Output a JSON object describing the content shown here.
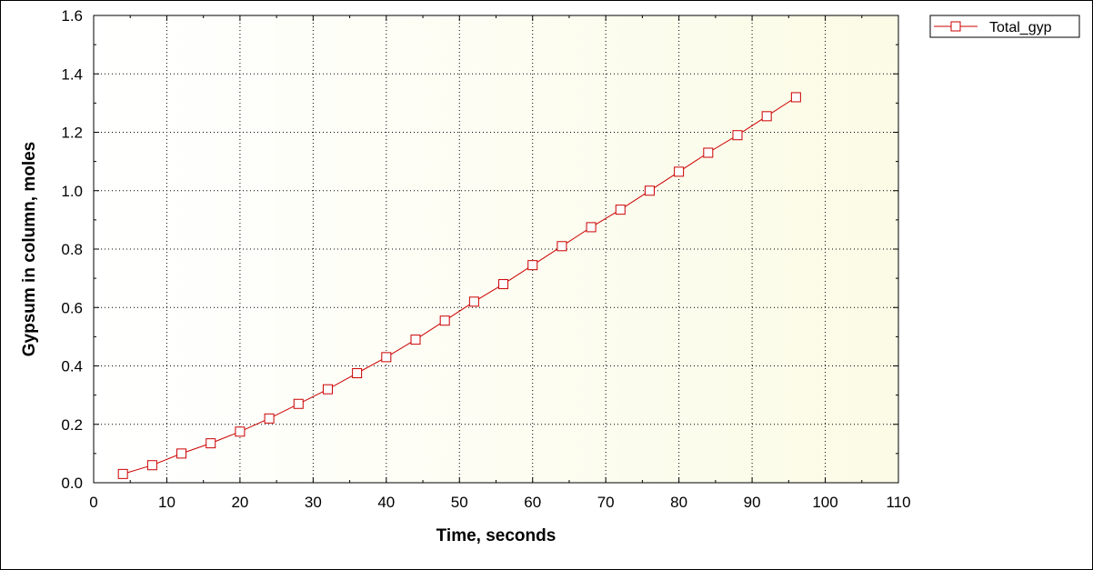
{
  "chart_data": {
    "type": "line",
    "title": "",
    "xlabel": "Time, seconds",
    "ylabel": "Gypsum in column, moles",
    "xlim": [
      0,
      110
    ],
    "ylim": [
      0,
      1.6
    ],
    "xticks": [
      "0",
      "10",
      "20",
      "30",
      "40",
      "50",
      "60",
      "70",
      "80",
      "90",
      "100",
      "110"
    ],
    "yticks": [
      "0.0",
      "0.2",
      "0.4",
      "0.6",
      "0.8",
      "1.0",
      "1.2",
      "1.4",
      "1.6"
    ],
    "grid": true,
    "legend_position": "top-right",
    "series": [
      {
        "name": "Total_gyp",
        "color": "#cc0000",
        "marker": "open-square",
        "x": [
          4,
          8,
          12,
          16,
          20,
          24,
          28,
          32,
          36,
          40,
          44,
          48,
          52,
          56,
          60,
          64,
          68,
          72,
          76,
          80,
          84,
          88,
          92,
          96
        ],
        "y": [
          0.03,
          0.06,
          0.1,
          0.135,
          0.175,
          0.22,
          0.27,
          0.32,
          0.375,
          0.43,
          0.49,
          0.555,
          0.62,
          0.68,
          0.745,
          0.81,
          0.875,
          0.935,
          1.0,
          1.065,
          1.13,
          1.19,
          1.255,
          1.32
        ]
      }
    ]
  }
}
